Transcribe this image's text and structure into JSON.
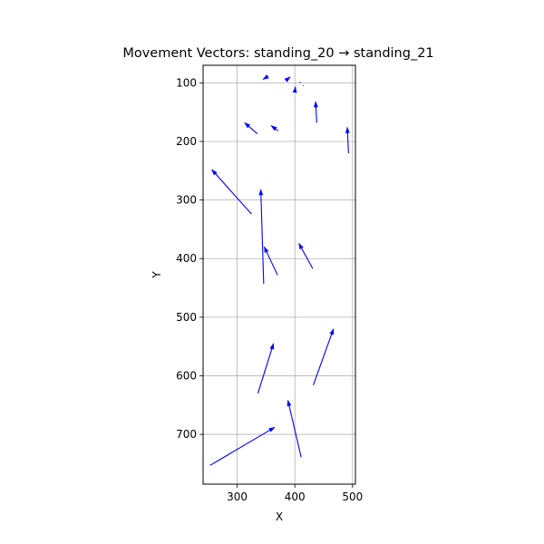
{
  "chart_data": {
    "type": "quiver",
    "title": "Movement Vectors: standing_20 → standing_21",
    "xlabel": "X",
    "ylabel": "Y",
    "xlim": [
      241,
      505
    ],
    "ylim": [
      785,
      70
    ],
    "y_inverted": true,
    "grid": true,
    "arrow_color": "#0000ff",
    "x_ticks": [
      300,
      400,
      500
    ],
    "y_ticks": [
      100,
      200,
      300,
      400,
      500,
      600,
      700
    ],
    "vectors": [
      {
        "x": 353,
        "y": 89,
        "x2": 345,
        "y2": 94
      },
      {
        "x": 384,
        "y": 96,
        "x2": 392,
        "y2": 90
      },
      {
        "x": 400,
        "y": 115,
        "x2": 401,
        "y2": 107
      },
      {
        "x": 408,
        "y": 99,
        "x2": 410,
        "y2": 100
      },
      {
        "x": 414,
        "y": 104,
        "x2": 415,
        "y2": 105
      },
      {
        "x": 438,
        "y": 168,
        "x2": 436,
        "y2": 132
      },
      {
        "x": 493,
        "y": 220,
        "x2": 491,
        "y2": 176
      },
      {
        "x": 335,
        "y": 187,
        "x2": 313,
        "y2": 168
      },
      {
        "x": 371,
        "y": 182,
        "x2": 359,
        "y2": 173
      },
      {
        "x": 402,
        "y": 179,
        "x2": 402,
        "y2": 179
      },
      {
        "x": 325,
        "y": 324,
        "x2": 256,
        "y2": 248
      },
      {
        "x": 346,
        "y": 443,
        "x2": 341,
        "y2": 282
      },
      {
        "x": 370,
        "y": 428,
        "x2": 347,
        "y2": 380
      },
      {
        "x": 431,
        "y": 417,
        "x2": 407,
        "y2": 374
      },
      {
        "x": 336,
        "y": 630,
        "x2": 363,
        "y2": 545
      },
      {
        "x": 432,
        "y": 616,
        "x2": 467,
        "y2": 520
      },
      {
        "x": 411,
        "y": 739,
        "x2": 388,
        "y2": 642
      },
      {
        "x": 253,
        "y": 753,
        "x2": 365,
        "y2": 688
      }
    ]
  }
}
